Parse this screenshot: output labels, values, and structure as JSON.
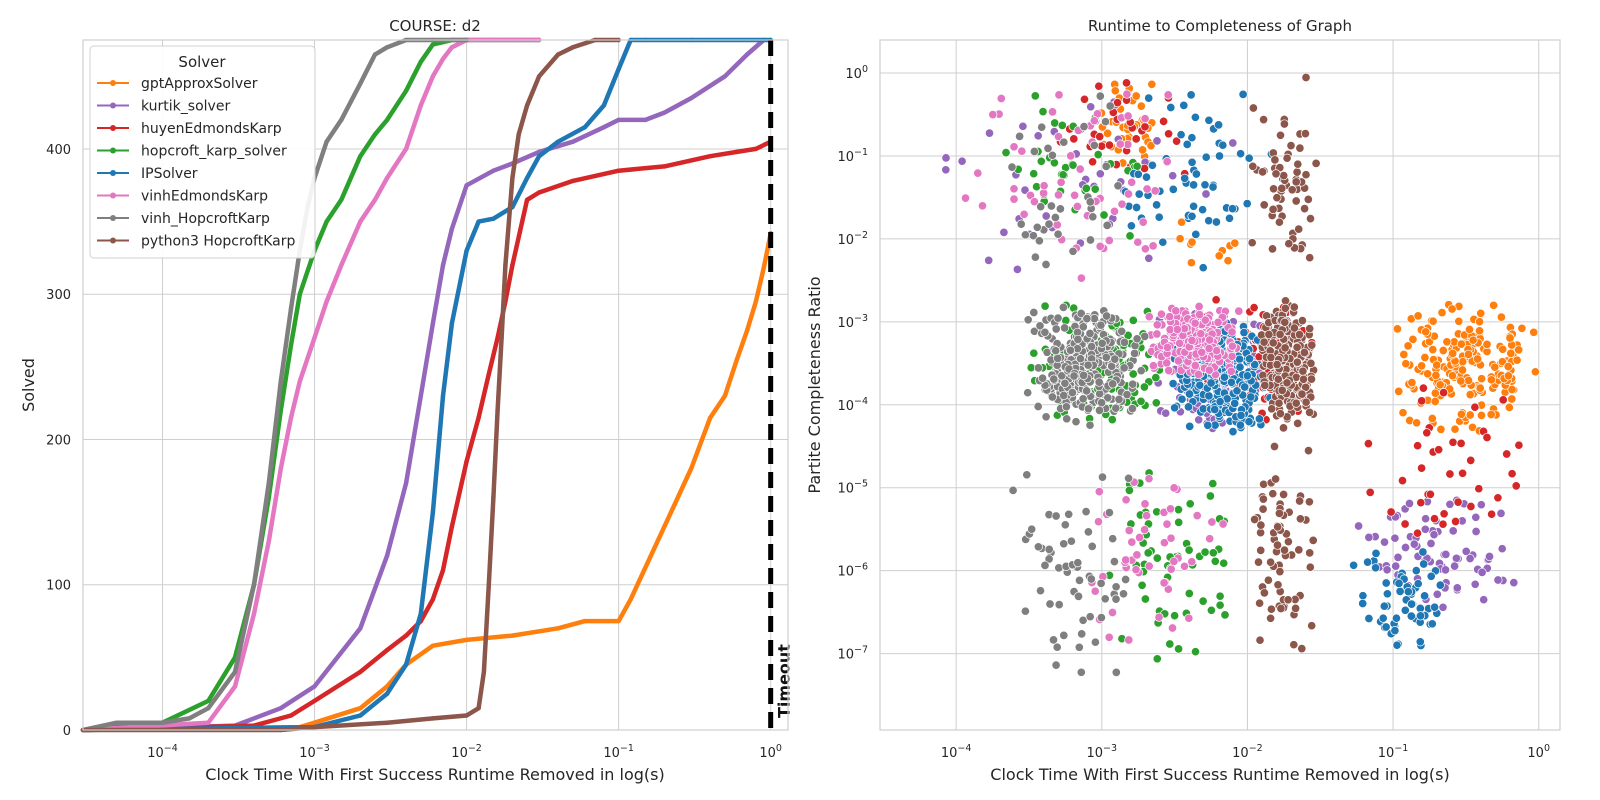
{
  "chart_data": [
    {
      "type": "line",
      "title": "COURSE: d2",
      "xlabel": "Clock Time With First Success Runtime Removed in log(s)",
      "ylabel": "Solved",
      "xscale": "log",
      "xlim": [
        3e-05,
        1.3
      ],
      "ylim": [
        0,
        475
      ],
      "xticks": [
        {
          "base": "10",
          "exp": "−4",
          "value": 0.0001
        },
        {
          "base": "10",
          "exp": "−3",
          "value": 0.001
        },
        {
          "base": "10",
          "exp": "−2",
          "value": 0.01
        },
        {
          "base": "10",
          "exp": "−1",
          "value": 0.1
        },
        {
          "base": "10",
          "exp": "0",
          "value": 1
        }
      ],
      "yticks": [
        "0",
        "100",
        "200",
        "300",
        "400"
      ],
      "grid": true,
      "legend": {
        "title": "Solver",
        "placement": "top-left"
      },
      "annotation": {
        "text": "Timeout",
        "x": 1
      },
      "series": [
        {
          "name": "gptApproxSolver",
          "color": "#ff7f0e",
          "x": [
            3e-05,
            0.0008,
            0.001,
            0.002,
            0.003,
            0.004,
            0.006,
            0.01,
            0.02,
            0.04,
            0.06,
            0.1,
            0.12,
            0.2,
            0.3,
            0.4,
            0.5,
            0.6,
            0.7,
            0.8,
            0.9,
            0.95,
            1.0
          ],
          "y": [
            0,
            2,
            5,
            15,
            30,
            45,
            58,
            62,
            65,
            70,
            75,
            75,
            90,
            140,
            180,
            215,
            230,
            255,
            275,
            295,
            318,
            330,
            342
          ]
        },
        {
          "name": "kurtik_solver",
          "color": "#9467bd",
          "x": [
            3e-05,
            0.0003,
            0.0006,
            0.001,
            0.002,
            0.003,
            0.004,
            0.005,
            0.006,
            0.007,
            0.008,
            0.01,
            0.015,
            0.02,
            0.03,
            0.05,
            0.08,
            0.1,
            0.15,
            0.2,
            0.3,
            0.5,
            0.7,
            0.9
          ],
          "y": [
            0,
            3,
            15,
            30,
            70,
            120,
            170,
            230,
            280,
            320,
            345,
            375,
            385,
            390,
            398,
            405,
            415,
            420,
            420,
            425,
            435,
            450,
            465,
            475
          ]
        },
        {
          "name": "huyenEdmondsKarp",
          "color": "#d62728",
          "x": [
            3e-05,
            0.0004,
            0.0007,
            0.001,
            0.002,
            0.003,
            0.004,
            0.005,
            0.006,
            0.007,
            0.008,
            0.01,
            0.012,
            0.014,
            0.016,
            0.018,
            0.02,
            0.025,
            0.03,
            0.05,
            0.1,
            0.2,
            0.4,
            0.6,
            0.8,
            1.0
          ],
          "y": [
            0,
            3,
            10,
            20,
            40,
            55,
            65,
            75,
            90,
            110,
            140,
            185,
            215,
            245,
            270,
            295,
            320,
            365,
            370,
            378,
            385,
            388,
            395,
            398,
            400,
            405
          ]
        },
        {
          "name": "hopcroft_karp_solver",
          "color": "#2ca02c",
          "x": [
            3e-05,
            0.0001,
            0.0002,
            0.0003,
            0.0004,
            0.0005,
            0.0006,
            0.0007,
            0.0008,
            0.001,
            0.0012,
            0.0015,
            0.002,
            0.0025,
            0.003,
            0.004,
            0.005,
            0.006,
            0.008,
            0.01,
            0.015,
            0.02,
            0.03
          ],
          "y": [
            0,
            5,
            20,
            50,
            100,
            160,
            220,
            265,
            300,
            330,
            350,
            365,
            395,
            410,
            420,
            440,
            460,
            472,
            475,
            475,
            475,
            475,
            475
          ]
        },
        {
          "name": "IPSolver",
          "color": "#1f77b4",
          "x": [
            3e-05,
            0.001,
            0.002,
            0.003,
            0.004,
            0.005,
            0.006,
            0.007,
            0.008,
            0.01,
            0.012,
            0.015,
            0.02,
            0.025,
            0.03,
            0.04,
            0.06,
            0.08,
            0.1,
            0.12,
            0.15,
            0.3,
            1.0
          ],
          "y": [
            0,
            2,
            10,
            25,
            45,
            80,
            150,
            230,
            280,
            330,
            350,
            352,
            360,
            380,
            395,
            405,
            415,
            430,
            455,
            475,
            475,
            475,
            475
          ]
        },
        {
          "name": "vinhEdmondsKarp",
          "color": "#e377c2",
          "x": [
            3e-05,
            0.0002,
            0.0003,
            0.0004,
            0.0005,
            0.0006,
            0.0007,
            0.0008,
            0.001,
            0.0012,
            0.0015,
            0.002,
            0.0025,
            0.003,
            0.004,
            0.005,
            0.006,
            0.007,
            0.008,
            0.01,
            0.015,
            0.02,
            0.03
          ],
          "y": [
            0,
            5,
            30,
            80,
            130,
            180,
            215,
            240,
            270,
            295,
            320,
            350,
            365,
            380,
            400,
            430,
            450,
            462,
            470,
            475,
            475,
            475,
            475
          ]
        },
        {
          "name": "vinh_HopcroftKarp",
          "color": "#7f7f7f",
          "x": [
            3e-05,
            5e-05,
            0.0001,
            0.00015,
            0.0002,
            0.0003,
            0.0004,
            0.0005,
            0.0006,
            0.0007,
            0.0008,
            0.0009,
            0.001,
            0.0012,
            0.0015,
            0.002,
            0.0025,
            0.003,
            0.004,
            0.006,
            0.01
          ],
          "y": [
            0,
            5,
            5,
            8,
            15,
            40,
            100,
            170,
            240,
            290,
            330,
            360,
            380,
            405,
            420,
            445,
            465,
            470,
            475,
            475,
            475
          ]
        },
        {
          "name": "python3 HopcroftKarp",
          "color": "#8c564b",
          "x": [
            3e-05,
            0.0006,
            0.001,
            0.003,
            0.006,
            0.01,
            0.012,
            0.013,
            0.014,
            0.015,
            0.016,
            0.017,
            0.018,
            0.02,
            0.022,
            0.025,
            0.03,
            0.04,
            0.05,
            0.07,
            0.1
          ],
          "y": [
            0,
            0,
            2,
            5,
            8,
            10,
            15,
            40,
            100,
            160,
            220,
            270,
            320,
            380,
            410,
            430,
            450,
            465,
            470,
            475,
            475
          ]
        }
      ]
    },
    {
      "type": "scatter",
      "title": "Runtime to Completeness of Graph",
      "xlabel": "Clock Time With First Success Runtime Removed in log(s)",
      "ylabel": "Partite Completeness Ratio",
      "xscale": "log",
      "yscale": "log",
      "xlim": [
        3e-05,
        1.4
      ],
      "ylim": [
        1.2e-08,
        2.5
      ],
      "xticks": [
        {
          "base": "10",
          "exp": "−4",
          "value": 0.0001
        },
        {
          "base": "10",
          "exp": "−3",
          "value": 0.001
        },
        {
          "base": "10",
          "exp": "−2",
          "value": 0.01
        },
        {
          "base": "10",
          "exp": "−1",
          "value": 0.1
        },
        {
          "base": "10",
          "exp": "0",
          "value": 1
        }
      ],
      "yticks": [
        {
          "base": "10",
          "exp": "0",
          "value": 1
        },
        {
          "base": "10",
          "exp": "−1",
          "value": 0.1
        },
        {
          "base": "10",
          "exp": "−2",
          "value": 0.01
        },
        {
          "base": "10",
          "exp": "−3",
          "value": 0.001
        },
        {
          "base": "10",
          "exp": "−4",
          "value": 0.0001
        },
        {
          "base": "10",
          "exp": "−5",
          "value": 1e-05
        },
        {
          "base": "10",
          "exp": "−6",
          "value": 1e-06
        },
        {
          "base": "10",
          "exp": "−7",
          "value": 1e-07
        }
      ],
      "grid": true,
      "clusters": [
        {
          "color": "#ff7f0e",
          "x": [
            0.0008,
            0.003
          ],
          "y": [
            0.05,
            1.0
          ],
          "n": 40
        },
        {
          "color": "#ff7f0e",
          "x": [
            0.1,
            1.0
          ],
          "y": [
            4e-05,
            0.002
          ],
          "n": 200
        },
        {
          "color": "#ff7f0e",
          "x": [
            0.002,
            0.015
          ],
          "y": [
            0.003,
            0.02
          ],
          "n": 10
        },
        {
          "color": "#9467bd",
          "x": [
            5e-05,
            0.01
          ],
          "y": [
            0.003,
            1.0
          ],
          "n": 40
        },
        {
          "color": "#9467bd",
          "x": [
            0.002,
            0.015
          ],
          "y": [
            5e-05,
            0.0015
          ],
          "n": 120
        },
        {
          "color": "#9467bd",
          "x": [
            0.05,
            0.8
          ],
          "y": [
            3e-07,
            1e-05
          ],
          "n": 80
        },
        {
          "color": "#d62728",
          "x": [
            0.0003,
            0.005
          ],
          "y": [
            0.05,
            1.0
          ],
          "n": 30
        },
        {
          "color": "#d62728",
          "x": [
            0.005,
            0.03
          ],
          "y": [
            5e-05,
            0.002
          ],
          "n": 90
        },
        {
          "color": "#d62728",
          "x": [
            0.05,
            1.0
          ],
          "y": [
            7e-07,
            0.0002
          ],
          "n": 40
        },
        {
          "color": "#2ca02c",
          "x": [
            0.00015,
            0.002
          ],
          "y": [
            0.005,
            1.0
          ],
          "n": 35
        },
        {
          "color": "#2ca02c",
          "x": [
            0.0003,
            0.003
          ],
          "y": [
            5e-05,
            0.002
          ],
          "n": 160
        },
        {
          "color": "#2ca02c",
          "x": [
            0.001,
            0.01
          ],
          "y": [
            5e-08,
            2e-05
          ],
          "n": 60
        },
        {
          "color": "#1f77b4",
          "x": [
            0.001,
            0.02
          ],
          "y": [
            0.003,
            1.0
          ],
          "n": 60
        },
        {
          "color": "#1f77b4",
          "x": [
            0.003,
            0.015
          ],
          "y": [
            4e-05,
            0.0012
          ],
          "n": 250
        },
        {
          "color": "#1f77b4",
          "x": [
            0.05,
            0.25
          ],
          "y": [
            8e-08,
            3e-06
          ],
          "n": 60
        },
        {
          "color": "#e377c2",
          "x": [
            0.0001,
            0.005
          ],
          "y": [
            0.003,
            1.0
          ],
          "n": 60
        },
        {
          "color": "#e377c2",
          "x": [
            0.002,
            0.009
          ],
          "y": [
            0.0002,
            0.0018
          ],
          "n": 250
        },
        {
          "color": "#e377c2",
          "x": [
            0.0005,
            0.008
          ],
          "y": [
            1e-07,
            3e-05
          ],
          "n": 50
        },
        {
          "color": "#7f7f7f",
          "x": [
            0.0002,
            0.002
          ],
          "y": [
            0.003,
            1.0
          ],
          "n": 35
        },
        {
          "color": "#7f7f7f",
          "x": [
            0.0003,
            0.002
          ],
          "y": [
            5e-05,
            0.0018
          ],
          "n": 300
        },
        {
          "color": "#7f7f7f",
          "x": [
            0.0002,
            0.002
          ],
          "y": [
            3e-08,
            2e-05
          ],
          "n": 60
        },
        {
          "color": "#8c564b",
          "x": [
            0.01,
            0.03
          ],
          "y": [
            0.004,
            1.0
          ],
          "n": 60
        },
        {
          "color": "#8c564b",
          "x": [
            0.012,
            0.03
          ],
          "y": [
            5e-05,
            0.002
          ],
          "n": 250
        },
        {
          "color": "#8c564b",
          "x": [
            0.01,
            0.03
          ],
          "y": [
            8e-08,
            5e-05
          ],
          "n": 70
        }
      ]
    }
  ]
}
